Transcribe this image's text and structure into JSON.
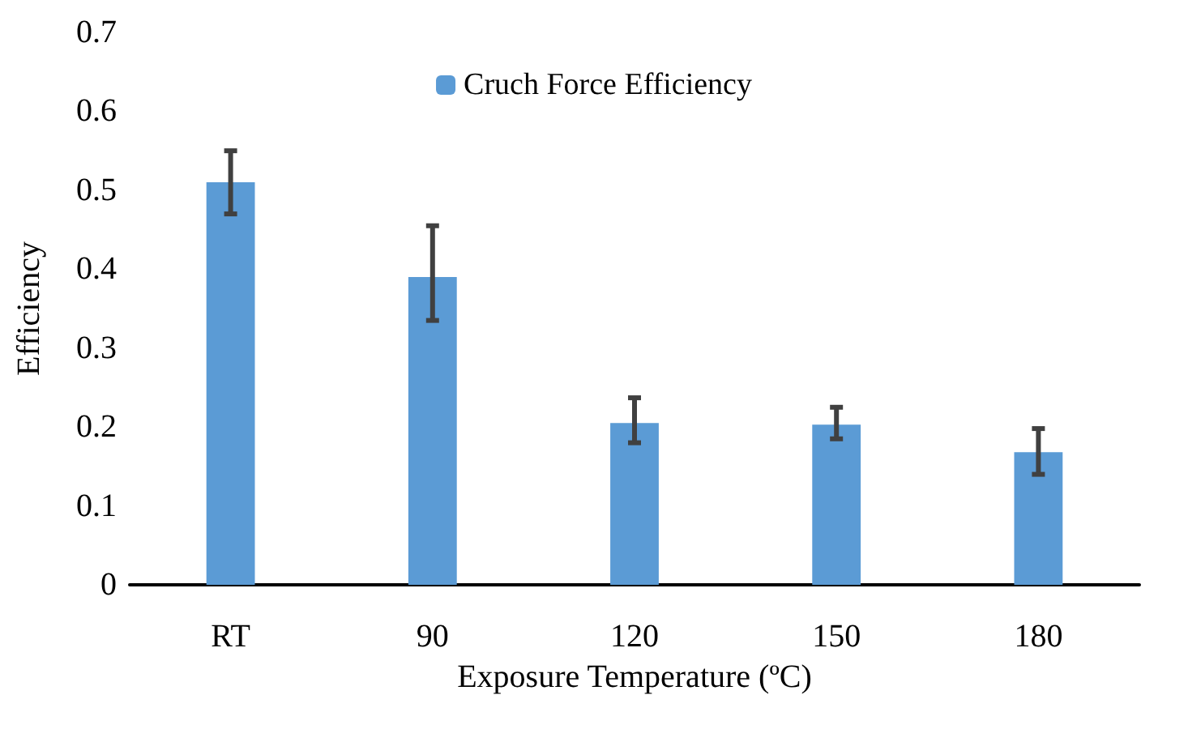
{
  "chart_data": {
    "type": "bar",
    "xlabel": "Exposure Temperature (ºC)",
    "ylabel": "Efficiency",
    "categories": [
      "RT",
      "90",
      "120",
      "150",
      "180"
    ],
    "series": [
      {
        "name": "Cruch Force Efficiency",
        "color": "#5b9bd5",
        "values": [
          0.51,
          0.39,
          0.205,
          0.203,
          0.168
        ],
        "errors": [
          [
            0.47,
            0.55
          ],
          [
            0.335,
            0.455
          ],
          [
            0.18,
            0.237
          ],
          [
            0.185,
            0.225
          ],
          [
            0.14,
            0.198
          ]
        ]
      }
    ],
    "ylim": [
      0,
      0.7
    ],
    "yticks": [
      0,
      0.1,
      0.2,
      0.3,
      0.4,
      0.5,
      0.6,
      0.7
    ],
    "grid": false,
    "legend": "top"
  }
}
